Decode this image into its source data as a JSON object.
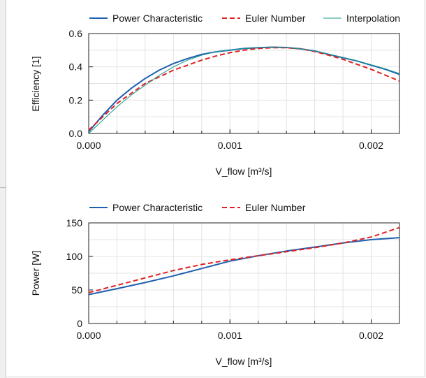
{
  "chart_data": [
    {
      "type": "line",
      "title": "",
      "xlabel": "V_flow [m³/s]",
      "ylabel": "Efficiency [1]",
      "xlim": [
        0,
        0.0022
      ],
      "ylim": [
        0,
        0.6
      ],
      "grid": true,
      "legend_position": "top",
      "x_ticks": [
        0,
        0.001,
        0.002
      ],
      "x_tick_labels": [
        "0.000",
        "0.001",
        "0.002"
      ],
      "y_ticks": [
        0,
        0.2,
        0.4,
        0.6
      ],
      "y_tick_labels": [
        "0.0",
        "0.2",
        "0.4",
        "0.6"
      ],
      "series": [
        {
          "name": "Power Characteristic",
          "color": "#1f5fb0",
          "style": "solid",
          "x": [
            0,
            0.0001,
            0.0002,
            0.0003,
            0.0004,
            0.0005,
            0.0006,
            0.0007,
            0.0008,
            0.0009,
            0.001,
            0.0011,
            0.0012,
            0.0013,
            0.0014,
            0.0015,
            0.0016,
            0.0017,
            0.0018,
            0.0019,
            0.002,
            0.0021,
            0.0022
          ],
          "values": [
            0.01,
            0.11,
            0.2,
            0.27,
            0.33,
            0.38,
            0.42,
            0.45,
            0.475,
            0.49,
            0.5,
            0.51,
            0.515,
            0.518,
            0.516,
            0.508,
            0.495,
            0.475,
            0.455,
            0.435,
            0.41,
            0.385,
            0.355
          ]
        },
        {
          "name": "Euler Number",
          "color": "#e02020",
          "style": "dashed",
          "x": [
            0,
            0.0001,
            0.0002,
            0.0003,
            0.0004,
            0.0005,
            0.0006,
            0.0007,
            0.0008,
            0.0009,
            0.001,
            0.0011,
            0.0012,
            0.0013,
            0.0014,
            0.0015,
            0.0016,
            0.0017,
            0.0018,
            0.0019,
            0.002,
            0.0021,
            0.0022
          ],
          "values": [
            0.02,
            0.1,
            0.18,
            0.24,
            0.3,
            0.34,
            0.38,
            0.41,
            0.44,
            0.465,
            0.485,
            0.5,
            0.51,
            0.515,
            0.515,
            0.508,
            0.492,
            0.47,
            0.445,
            0.415,
            0.385,
            0.35,
            0.315
          ]
        },
        {
          "name": "Interpolation",
          "color": "#179a8e",
          "style": "solid",
          "x": [
            0,
            0.0001,
            0.0002,
            0.0003,
            0.0004,
            0.0005,
            0.0006,
            0.0007,
            0.0008,
            0.0009,
            0.001,
            0.0011,
            0.0012,
            0.0013,
            0.0014,
            0.0015,
            0.0016,
            0.0017,
            0.0018,
            0.0019,
            0.002,
            0.0021,
            0.0022
          ],
          "values": [
            0.0,
            0.08,
            0.16,
            0.23,
            0.29,
            0.35,
            0.4,
            0.44,
            0.47,
            0.49,
            0.5,
            0.51,
            0.515,
            0.518,
            0.516,
            0.508,
            0.495,
            0.476,
            0.456,
            0.436,
            0.413,
            0.388,
            0.36
          ]
        }
      ]
    },
    {
      "type": "line",
      "title": "",
      "xlabel": "V_flow [m³/s]",
      "ylabel": "Power [W]",
      "xlim": [
        0,
        0.0022
      ],
      "ylim": [
        0,
        150
      ],
      "grid": true,
      "legend_position": "top",
      "x_ticks": [
        0,
        0.001,
        0.002
      ],
      "x_tick_labels": [
        "0.000",
        "0.001",
        "0.002"
      ],
      "y_ticks": [
        0,
        50,
        100,
        150
      ],
      "y_tick_labels": [
        "0",
        "50",
        "100",
        "150"
      ],
      "series": [
        {
          "name": "Power Characteristic",
          "color": "#1f5fb0",
          "style": "solid",
          "x": [
            0,
            0.0002,
            0.0004,
            0.0006,
            0.0008,
            0.001,
            0.0012,
            0.0014,
            0.0016,
            0.0018,
            0.002,
            0.0022
          ],
          "values": [
            43,
            52,
            61,
            71,
            82,
            93,
            101,
            108,
            114,
            120,
            125,
            128
          ]
        },
        {
          "name": "Euler Number",
          "color": "#e02020",
          "style": "dashed",
          "x": [
            0,
            0.0002,
            0.0004,
            0.0006,
            0.0008,
            0.001,
            0.0012,
            0.0014,
            0.0016,
            0.0018,
            0.002,
            0.0022
          ],
          "values": [
            46,
            57,
            68,
            79,
            88,
            95,
            101,
            107,
            113,
            120,
            129,
            143
          ]
        }
      ]
    }
  ]
}
